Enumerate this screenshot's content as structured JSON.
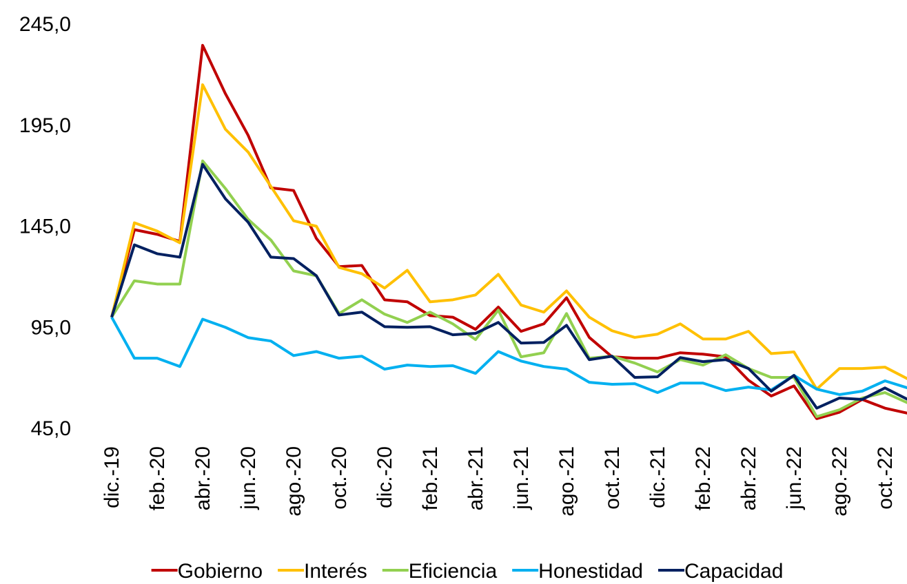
{
  "chart_data": {
    "type": "line",
    "categories": [
      "dic.-19",
      null,
      "feb.-20",
      null,
      "abr.-20",
      null,
      "jun.-20",
      null,
      "ago.-20",
      null,
      "oct.-20",
      null,
      "dic.-20",
      null,
      "feb.-21",
      null,
      "abr.-21",
      null,
      "jun.-21",
      null,
      "ago.-21",
      null,
      "oct.-21",
      null,
      "dic.-21",
      null,
      "feb.-22",
      null,
      "abr.-22",
      null,
      "jun.-22",
      null,
      "ago.-22",
      null,
      "oct.-22",
      null
    ],
    "ylim": [
      45,
      245
    ],
    "yticks": [
      {
        "value": 45,
        "label": "45,0"
      },
      {
        "value": 95,
        "label": "95,0"
      },
      {
        "value": 145,
        "label": "145,0"
      },
      {
        "value": 195,
        "label": "195,0"
      },
      {
        "value": 245,
        "label": "245,0"
      }
    ],
    "grid": false,
    "legend": "bottom",
    "series": [
      {
        "name": "Gobierno",
        "color": "#c00000",
        "values": [
          100,
          143.3,
          141,
          137.5,
          234.5,
          210.6,
          190,
          164,
          162.7,
          139,
          125,
          125.6,
          108.6,
          107.6,
          100.8,
          100,
          94,
          105,
          93,
          96.7,
          109.6,
          90,
          80.4,
          79.7,
          79.7,
          82.4,
          81.7,
          80.4,
          68.8,
          61,
          66,
          49.8,
          53,
          59.3,
          55,
          52.5
        ]
      },
      {
        "name": "Interés",
        "color": "#ffc000",
        "values": [
          100,
          146.7,
          142.6,
          136.8,
          215,
          193,
          181.7,
          164.7,
          147.7,
          145,
          124.6,
          121.5,
          114.4,
          123.2,
          107.6,
          108.6,
          111,
          121.2,
          106,
          102.5,
          113,
          100,
          93.3,
          90,
          91.6,
          96.7,
          89.2,
          89.2,
          93,
          82,
          82.8,
          64.4,
          74.6,
          74.6,
          75.3,
          69.5
        ]
      },
      {
        "name": "Eficiencia",
        "color": "#92d050",
        "values": [
          100,
          118,
          116.4,
          116.4,
          177.3,
          163.7,
          148.4,
          138.2,
          122.9,
          120.5,
          101.8,
          108.6,
          101.5,
          97.4,
          102.5,
          96.7,
          88.9,
          103.5,
          80.4,
          82.4,
          101.8,
          79.7,
          80.7,
          77.3,
          72.9,
          79,
          76.3,
          81.4,
          74.6,
          70.2,
          70.2,
          50.8,
          54.2,
          60,
          62.7,
          57.6
        ]
      },
      {
        "name": "Honestidad",
        "color": "#00b0f0",
        "values": [
          100,
          79.7,
          79.7,
          75.6,
          99,
          95,
          89.9,
          88.2,
          81,
          83,
          79.7,
          80.7,
          74.3,
          76.3,
          75.6,
          76,
          72.2,
          83,
          78.3,
          75.6,
          74.3,
          67.8,
          66.8,
          67.1,
          62.7,
          67.4,
          67.4,
          63.7,
          65.4,
          64,
          71.2,
          64.4,
          61.7,
          63.4,
          68.5,
          65
        ]
      },
      {
        "name": "Capacidad",
        "color": "#002060",
        "values": [
          100,
          135.8,
          131.4,
          129.7,
          175.6,
          158.6,
          147,
          129.7,
          129,
          120.5,
          101.1,
          102.5,
          95.3,
          95,
          95.3,
          91.3,
          92,
          97.4,
          87.2,
          87.5,
          96,
          79,
          80.7,
          70.2,
          70.5,
          80,
          78,
          79,
          74.6,
          63.4,
          71.2,
          55,
          60,
          59.3,
          65,
          59.3
        ]
      }
    ]
  }
}
